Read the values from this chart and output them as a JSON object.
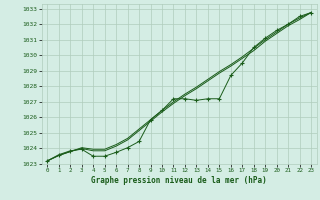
{
  "title": "Graphe pression niveau de la mer (hPa)",
  "xlim": [
    -0.5,
    23.5
  ],
  "ylim": [
    1023,
    1033.3
  ],
  "yticks": [
    1023,
    1024,
    1025,
    1026,
    1027,
    1028,
    1029,
    1030,
    1031,
    1032,
    1033
  ],
  "xticks": [
    0,
    1,
    2,
    3,
    4,
    5,
    6,
    7,
    8,
    9,
    10,
    11,
    12,
    13,
    14,
    15,
    16,
    17,
    18,
    19,
    20,
    21,
    22,
    23
  ],
  "bg_color": "#d4ede4",
  "grid_color": "#b0ccbc",
  "line_color": "#1a5c1a",
  "line1_y": [
    1023.2,
    1023.6,
    1023.85,
    1023.95,
    1023.5,
    1023.5,
    1023.75,
    1024.05,
    1024.45,
    1025.85,
    1026.45,
    1027.2,
    1027.2,
    1027.1,
    1027.2,
    1027.2,
    1028.7,
    1029.5,
    1030.5,
    1031.1,
    1031.6,
    1032.0,
    1032.5,
    1032.75
  ],
  "line2_y": [
    1023.2,
    1023.55,
    1023.8,
    1024.0,
    1023.85,
    1023.85,
    1024.15,
    1024.55,
    1025.15,
    1025.75,
    1026.35,
    1026.9,
    1027.4,
    1027.85,
    1028.35,
    1028.85,
    1029.3,
    1029.8,
    1030.3,
    1030.9,
    1031.4,
    1031.9,
    1032.3,
    1032.75
  ],
  "line3_y": [
    1023.2,
    1023.55,
    1023.8,
    1024.05,
    1023.95,
    1023.95,
    1024.25,
    1024.65,
    1025.25,
    1025.85,
    1026.45,
    1027.0,
    1027.5,
    1027.95,
    1028.45,
    1028.95,
    1029.4,
    1029.9,
    1030.45,
    1031.0,
    1031.5,
    1032.0,
    1032.4,
    1032.75
  ]
}
